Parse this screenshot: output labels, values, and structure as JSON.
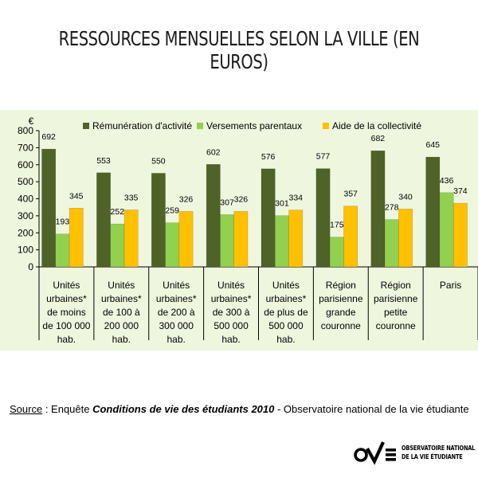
{
  "title": "RESSOURCES MENSUELLES SELON LA VILLE (EN EUROS)",
  "chart_data": {
    "type": "bar",
    "ylabel": "€",
    "ylim": [
      0,
      800
    ],
    "yticks": [
      0,
      100,
      200,
      300,
      400,
      500,
      600,
      700,
      800
    ],
    "grid": false,
    "legend_position": "top",
    "categories": [
      "Unités urbaines* de moins de 100 000 hab.",
      "Unités urbaines* de 100 à 200 000 hab.",
      "Unités urbaines* de 200 à 300 000 hab.",
      "Unités urbaines* de 300 à 500 000 hab.",
      "Unités urbaines* de plus de 500 000 hab.",
      "Région parisienne grande couronne",
      "Région parisienne petite couronne",
      "Paris"
    ],
    "category_lines": [
      [
        "Unités",
        "urbaines*",
        "de moins",
        "de 100 000",
        "hab."
      ],
      [
        "Unités",
        "urbaines*",
        "de 100 à",
        "200 000",
        "hab."
      ],
      [
        "Unités",
        "urbaines*",
        "de 200 à",
        "300 000",
        "hab."
      ],
      [
        "Unités",
        "urbaines*",
        "de 300 à",
        "500 000",
        "hab."
      ],
      [
        "Unités",
        "urbaines*",
        "de plus de",
        "500 000",
        "hab."
      ],
      [
        "Région",
        "parisienne",
        "grande",
        "couronne"
      ],
      [
        "Région",
        "parisienne",
        "petite",
        "couronne"
      ],
      [
        "Paris"
      ]
    ],
    "series": [
      {
        "name": "Rémunération d'activité",
        "color": "#4f6228",
        "values": [
          692,
          553,
          550,
          602,
          576,
          577,
          682,
          645
        ]
      },
      {
        "name": "Versements parentaux",
        "color": "#92d050",
        "values": [
          193,
          252,
          259,
          307,
          301,
          175,
          278,
          436
        ]
      },
      {
        "name": "Aide de la collectivité",
        "color": "#ffc000",
        "values": [
          345,
          335,
          326,
          326,
          334,
          357,
          340,
          374
        ]
      }
    ]
  },
  "source": {
    "label": "Source",
    "prefix": " : Enquête ",
    "emphasis": "Conditions de vie des étudiants 2010",
    "suffix": " - Observatoire national de la vie étudiante"
  },
  "logo": {
    "line1": "OBSERVATOIRE NATIONAL",
    "line2": "DE LA VIE ÉTUDIANTE"
  }
}
